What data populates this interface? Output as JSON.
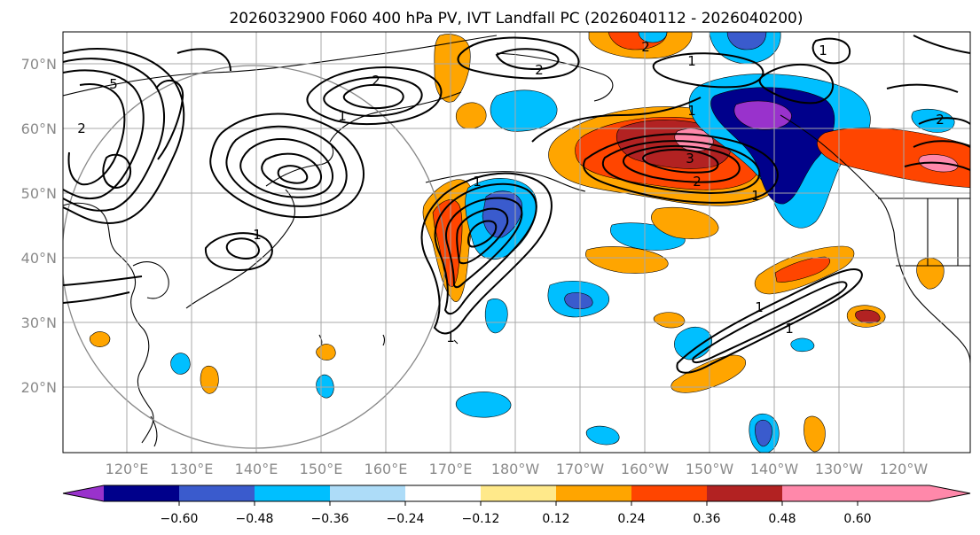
{
  "title": "2026032900 F060 400 hPa PV, IVT Landfall PC (2026040112 - 2026040200)",
  "lat_labels": [
    "70°N",
    "60°N",
    "50°N",
    "40°N",
    "30°N",
    "20°N"
  ],
  "lon_labels": [
    "120°E",
    "130°E",
    "140°E",
    "150°E",
    "160°E",
    "170°E",
    "180°W",
    "170°W",
    "160°W",
    "150°W",
    "140°W",
    "130°W",
    "120°W"
  ],
  "colorbar": {
    "ticks": [
      "−0.60",
      "−0.48",
      "−0.36",
      "−0.24",
      "−0.12",
      "0.12",
      "0.24",
      "0.36",
      "0.48",
      "0.60"
    ],
    "colors": [
      "#9932CC",
      "#00008B",
      "#3A5BCD",
      "#00BFFF",
      "#ADDCF8",
      "#FFFFFF",
      "#FFE98A",
      "#FFA500",
      "#FF4500",
      "#B22222",
      "#FF88AA"
    ]
  },
  "contour_labels": [
    "5",
    "2",
    "1",
    "1",
    "2",
    "1",
    "1",
    "3",
    "1",
    "2",
    "1",
    "2",
    "1",
    "1",
    "1",
    "1",
    "2",
    "2"
  ]
}
